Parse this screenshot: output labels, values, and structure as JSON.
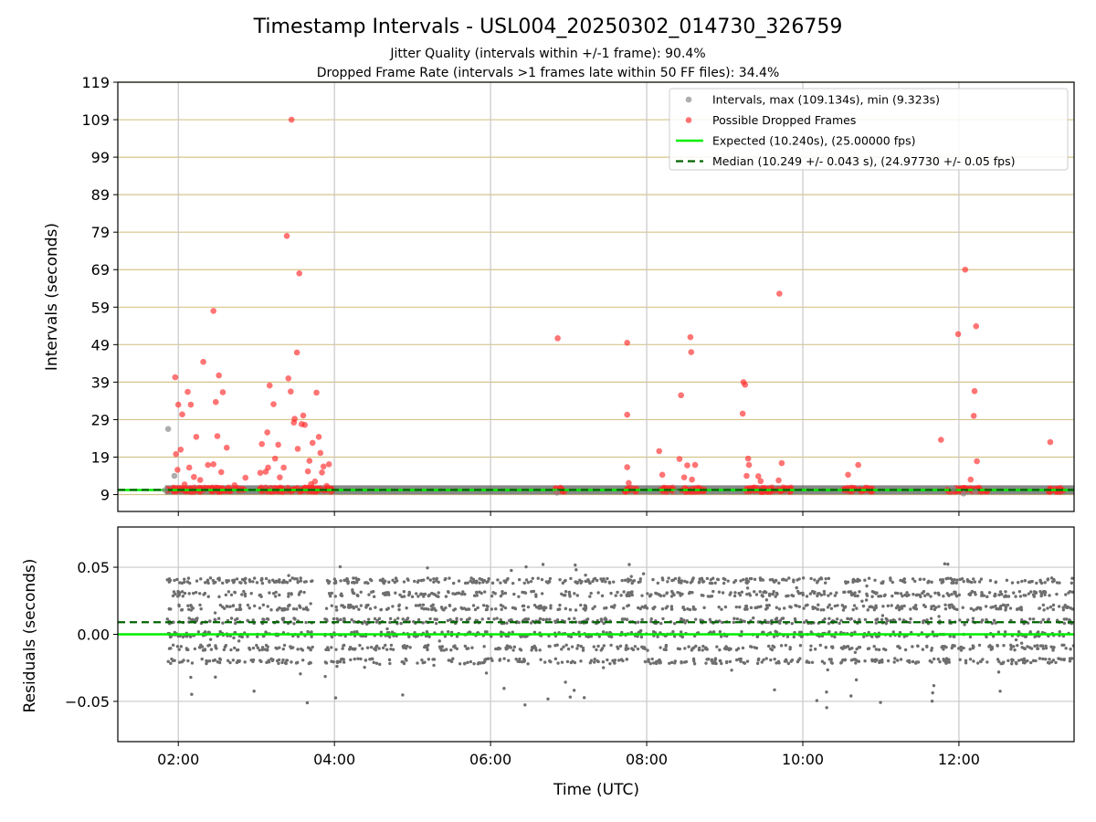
{
  "figure": {
    "title": "Timestamp Intervals - USL004_20250302_014730_326759",
    "subtitle_line1": "Jitter Quality (intervals within +/-1 frame): 90.4%",
    "subtitle_line2": "Dropped Frame Rate (intervals >1 frames late within 50 FF files): 34.4%"
  },
  "colors": {
    "intervals": "#8c8c8c",
    "dropped": "#ff2a2a",
    "expected": "#00ee00",
    "median": "#006400",
    "hgrid_top": "#d4c48a",
    "vgrid": "#c8c8c8",
    "residual_points": "#6e6e6e"
  },
  "chart_data": [
    {
      "type": "scatter",
      "panel": "intervals",
      "ylabel": "Intervals (seconds)",
      "xlabel": "",
      "ylim": [
        4.5,
        119
      ],
      "xlim_hours": [
        1.225,
        13.475
      ],
      "yticks": [
        "9",
        "19",
        "29",
        "39",
        "49",
        "59",
        "69",
        "79",
        "89",
        "99",
        "109",
        "119"
      ],
      "xticks": [
        "02:00",
        "04:00",
        "06:00",
        "08:00",
        "10:00",
        "12:00"
      ],
      "grid": true,
      "legend_position": "top-right",
      "legend": [
        {
          "label": "Intervals, max (109.134s), min (9.323s)",
          "kind": "intervals"
        },
        {
          "label": "Possible Dropped Frames",
          "kind": "dropped"
        },
        {
          "label": "Expected (10.240s), (25.00000 fps)",
          "kind": "expected"
        },
        {
          "label": "Median (10.249 +/- 0.043 s), (24.97730 +/- 0.05 fps)",
          "kind": "median"
        }
      ],
      "expected_value": 10.24,
      "median_value": 10.249,
      "series": [
        {
          "name": "Intervals, max (109.134s), min (9.323s)",
          "x": [
            1.87,
            1.95,
            1.83,
            11.93,
            12.06,
            12.21,
            6.85,
            8.38
          ],
          "y": [
            26.5,
            14.0,
            10.2,
            10.6,
            9.3,
            9.8,
            9.5,
            9.7
          ]
        },
        {
          "name": "Possible Dropped Frames",
          "x": [
            1.96,
            2.0,
            2.05,
            2.12,
            2.16,
            2.23,
            2.32,
            2.45,
            2.48,
            2.52,
            2.57,
            2.5,
            2.03,
            1.99,
            1.97,
            2.08,
            2.14,
            2.2,
            2.28,
            2.38,
            2.45,
            2.55,
            2.62,
            2.72,
            2.86,
            3.07,
            3.14,
            3.17,
            3.22,
            3.28,
            3.39,
            3.41,
            3.45,
            3.49,
            3.52,
            3.55,
            3.58,
            3.62,
            3.66,
            3.72,
            3.77,
            3.82,
            3.86,
            3.12,
            3.24,
            3.35,
            3.44,
            3.53,
            3.6,
            3.68,
            3.75,
            3.8,
            3.84,
            3.9,
            3.93,
            3.05,
            3.15,
            3.3,
            3.48,
            3.7,
            6.86,
            7.75,
            7.75,
            7.75,
            7.77,
            8.16,
            8.2,
            8.42,
            8.44,
            8.56,
            8.57,
            8.52,
            8.58,
            8.62,
            8.48,
            9.23,
            9.26,
            9.24,
            9.3,
            9.31,
            9.28,
            9.43,
            9.46,
            9.7,
            9.73,
            9.69,
            10.58,
            10.71,
            11.77,
            11.99,
            12.08,
            12.2,
            12.22,
            12.23,
            12.19,
            12.15,
            13.17
          ],
          "y": [
            40.3,
            33.0,
            30.4,
            36.4,
            33.0,
            24.4,
            44.4,
            58.0,
            33.7,
            40.8,
            36.3,
            24.6,
            21.0,
            15.6,
            19.8,
            11.7,
            16.2,
            13.7,
            12.9,
            16.9,
            17.1,
            15.0,
            21.5,
            11.5,
            13.5,
            22.5,
            25.6,
            38.1,
            33.1,
            22.3,
            78.0,
            40.0,
            109.0,
            29.2,
            46.9,
            68.0,
            27.8,
            27.6,
            15.2,
            22.8,
            36.2,
            20.1,
            16.5,
            15.1,
            18.6,
            16.2,
            36.5,
            21.2,
            30.1,
            18.0,
            12.5,
            24.4,
            14.9,
            11.3,
            17.1,
            14.8,
            16.2,
            13.6,
            28.2,
            11.8,
            50.7,
            49.5,
            30.3,
            16.3,
            12.1,
            20.6,
            14.3,
            18.5,
            35.5,
            51.0,
            47.0,
            16.8,
            13.0,
            16.9,
            13.6,
            30.6,
            38.3,
            39.0,
            18.6,
            16.9,
            14.0,
            13.9,
            12.6,
            62.6,
            17.4,
            12.8,
            14.3,
            16.9,
            23.6,
            51.8,
            69.0,
            36.6,
            53.9,
            17.9,
            30.0,
            13.0,
            23.0
          ]
        }
      ],
      "dense_clusters_hours": [
        [
          1.85,
          2.85
        ],
        [
          3.02,
          3.98
        ],
        [
          6.83,
          6.97
        ],
        [
          7.72,
          7.88
        ],
        [
          8.15,
          8.35
        ],
        [
          8.45,
          8.75
        ],
        [
          9.25,
          9.65
        ],
        [
          9.65,
          9.85
        ],
        [
          10.5,
          10.67
        ],
        [
          10.7,
          10.9
        ],
        [
          11.85,
          12.05
        ],
        [
          12.05,
          12.4
        ],
        [
          13.15,
          13.35
        ]
      ]
    },
    {
      "type": "scatter",
      "panel": "residuals",
      "ylabel": "Residuals (seconds)",
      "xlabel": "Time (UTC)",
      "ylim": [
        -0.08,
        0.08
      ],
      "yticks": [
        "−0.05",
        "0.00",
        "0.05"
      ],
      "xticks": [
        "02:00",
        "04:00",
        "06:00",
        "08:00",
        "10:00",
        "12:00"
      ],
      "grid": true,
      "expected_line": 0.0,
      "median_line": 0.009,
      "residual_range": [
        -0.06,
        0.06
      ],
      "point_count_estimate": 2600
    }
  ]
}
